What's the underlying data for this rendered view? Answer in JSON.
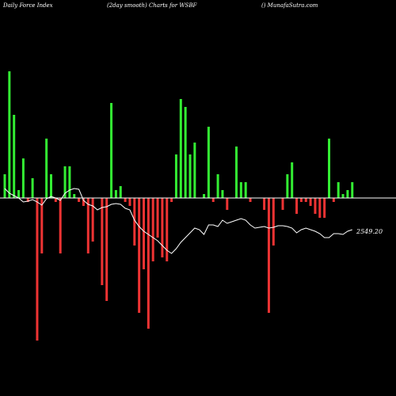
{
  "header": {
    "left": "Daily Force  Index",
    "center": "(2day smooth) Charts for WSBF",
    "right": "() MunafaSutra.com"
  },
  "colors": {
    "background": "#000000",
    "positive": "#33ee33",
    "negative": "#ee3333",
    "zero_line": "#ffffff",
    "smooth_line": "#ffffff"
  },
  "chart_data": {
    "type": "bar",
    "title": "",
    "last_value_label": "2549.20",
    "bar_values": [
      30,
      160,
      105,
      10,
      50,
      -5,
      25,
      -180,
      -70,
      75,
      30,
      -5,
      -70,
      40,
      40,
      5,
      -5,
      -10,
      -70,
      -55,
      0,
      -110,
      -130,
      120,
      10,
      15,
      -5,
      -10,
      -60,
      -145,
      -90,
      -165,
      -80,
      -50,
      -75,
      -80,
      -5,
      55,
      125,
      115,
      55,
      70,
      0,
      5,
      90,
      -5,
      30,
      10,
      -15,
      0,
      65,
      20,
      20,
      -5,
      0,
      0,
      -15,
      -145,
      -60,
      0,
      -15,
      30,
      45,
      -20,
      -5,
      -5,
      -10,
      -20,
      -25,
      -25,
      75,
      -5,
      20,
      5,
      10,
      20
    ],
    "smooth_series": [
      12,
      6,
      3,
      0,
      -5,
      -4,
      -2,
      -5,
      -9,
      -1,
      2,
      0,
      -3,
      6,
      10,
      12,
      11,
      -3,
      -8,
      -10,
      -15,
      -12,
      -11,
      -8,
      -7,
      -8,
      -13,
      -15,
      -28,
      -36,
      -42,
      -46,
      -50,
      -54,
      -60,
      -66,
      -70,
      -64,
      -56,
      -50,
      -44,
      -38,
      -40,
      -46,
      -34,
      -34,
      -36,
      -28,
      -32,
      -30,
      -28,
      -26,
      -28,
      -34,
      -38,
      -37,
      -36,
      -38,
      -37,
      -35,
      -35,
      -36,
      -38,
      -44,
      -40,
      -38,
      -40,
      -42,
      -45,
      -50,
      -50,
      -45,
      -45,
      -46,
      -42,
      -40
    ],
    "ylim": [
      -185,
      165
    ]
  }
}
